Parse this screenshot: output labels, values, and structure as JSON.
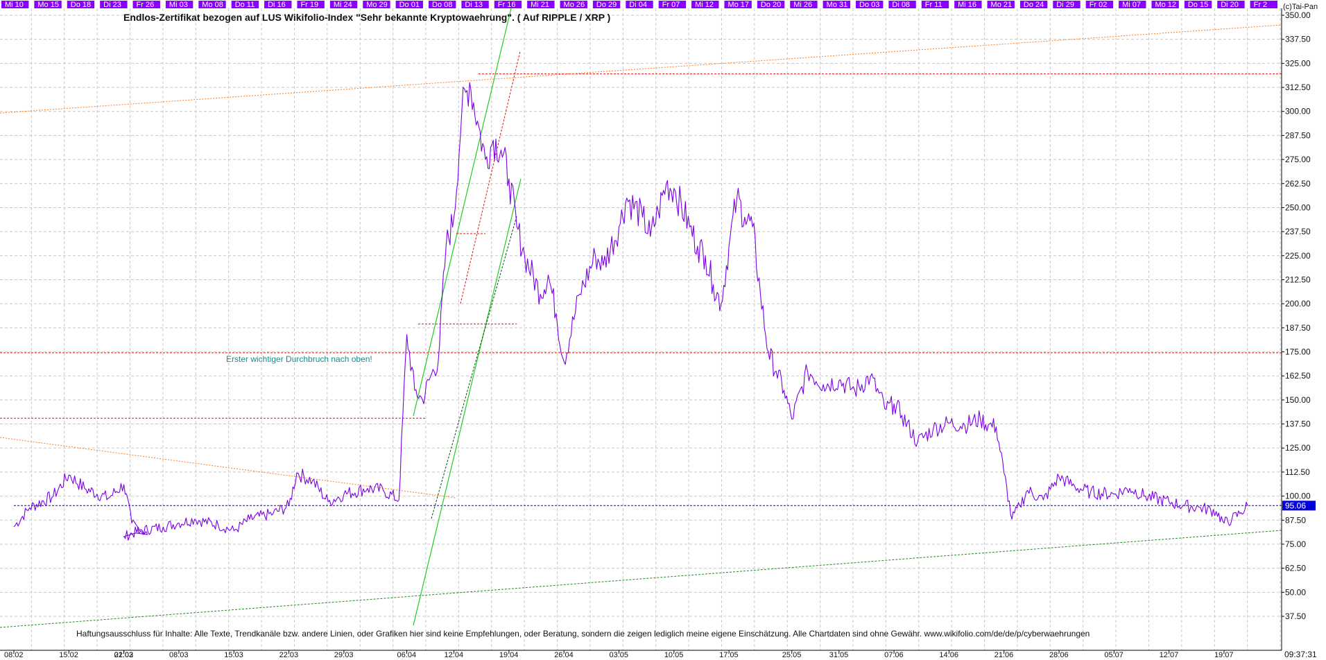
{
  "title": "Endlos-Zertifikat bezogen auf LUS Wikifolio-Index \"Sehr bekannte Kryptowaehrung\". ( Auf RIPPLE / XRP )",
  "footer": "Haftungsausschluss für Inhalte: Alle Texte, Trendkanäle bzw. andere Linien, oder Grafiken hier sind keine Empfehlungen, oder Beratung, sondern die zeigen lediglich meine eigene Einschätzung. Alle Chartdaten sind ohne Gewähr.  www.wikifolio.com/de/de/p/cyberwaehrungen",
  "annotation": "Erster wichtiger Durchbruch nach oben!",
  "copyright": "(c)Tai-Pan",
  "time_label": "09:37:31",
  "last_price_label": "95.06",
  "colors": {
    "price": "#7a00e6",
    "day_band": "#8a00ff",
    "grid": "#c8c8c8",
    "red_line": "#e01010",
    "orange_line": "#ff7a1a",
    "green_line": "#22cc22",
    "green_dotted": "#1f8a1f",
    "blue_line": "#0000dd",
    "last_price_bg": "#0000dd"
  },
  "day_labels": [
    "Mi 10",
    "Mo 15",
    "Do 18",
    "Di 23",
    "Fr 26",
    "Mi 03",
    "Mo 08",
    "Do 11",
    "Di 16",
    "Fr 19",
    "Mi 24",
    "Mo 29",
    "Do 01",
    "Do 08",
    "Di 13",
    "Fr 16",
    "Mi 21",
    "Mo 26",
    "Do 29",
    "Di 04",
    "Fr 07",
    "Mi 12",
    "Mo 17",
    "Do 20",
    "Mi 26",
    "Mo 31",
    "Do 03",
    "Di 08",
    "Fr 11",
    "Mi 16",
    "Mo 21",
    "Do 24",
    "Di 29",
    "Fr 02",
    "Mi 07",
    "Mo 12",
    "Do 15",
    "Di 20",
    "Fr 2"
  ],
  "chart_data": {
    "type": "line",
    "title": "Endlos-Zertifikat bezogen auf LUS Wikifolio-Index \"Sehr bekannte Kryptowaehrung\". ( Auf RIPPLE / XRP )",
    "xlabel": "",
    "ylabel": "",
    "ylim": [
      37.5,
      350
    ],
    "y_ticks": [
      "37.50",
      "50.00",
      "62.50",
      "75.00",
      "87.50",
      "100.00",
      "112.50",
      "125.00",
      "137.50",
      "150.00",
      "162.50",
      "175.00",
      "187.50",
      "200.00",
      "212.50",
      "225.00",
      "237.50",
      "250.00",
      "262.50",
      "275.00",
      "287.50",
      "300.00",
      "312.50",
      "325.00",
      "337.50",
      "350.00"
    ],
    "x_ticks": [
      "08:02",
      "15:02",
      "22:02",
      "01:03",
      "08:03",
      "15:03",
      "22:03",
      "29:03",
      "06:04",
      "12:04",
      "19:04",
      "26:04",
      "03:05",
      "10:05",
      "17:05",
      "25:05",
      "31:05",
      "07:06",
      "14:06",
      "21:06",
      "28:06",
      "05:07",
      "12:07",
      "19:07"
    ],
    "grid": true,
    "series": [
      {
        "x": [
          "08:02",
          "10:02",
          "13:02",
          "15:02",
          "17:02",
          "20:02",
          "22:02",
          "23:02",
          "25:02",
          "01:03",
          "03:03",
          "06:03",
          "08:03",
          "10:03",
          "13:03",
          "15:03",
          "17:03",
          "20:03",
          "22:03",
          "23:03",
          "25:03",
          "27:03",
          "29:03",
          "01:04",
          "03:04",
          "05:04",
          "06:04",
          "07:04",
          "08:04",
          "09:04",
          "10:04",
          "11:04",
          "12:04",
          "13:04",
          "14:04",
          "15:04",
          "16:04",
          "17:04",
          "18:04",
          "19:04",
          "20:04",
          "21:04",
          "23:04",
          "24:04",
          "25:04",
          "26:04",
          "28:04",
          "30:04",
          "01:05",
          "03:05",
          "04:05",
          "06:05",
          "07:05",
          "08:05",
          "09:05",
          "10:05",
          "12:05",
          "13:05",
          "14:05",
          "15:05",
          "16:05",
          "17:05",
          "18:05",
          "19:05",
          "20:05",
          "21:05",
          "22:05",
          "23:05",
          "24:05",
          "25:05",
          "27:05",
          "29:05",
          "31:05",
          "02:06",
          "04:06",
          "06:06",
          "07:06",
          "08:06",
          "10:06",
          "12:06",
          "14:06",
          "16:06",
          "18:06",
          "19:06",
          "20:06",
          "21:06",
          "22:06",
          "23:06",
          "24:06",
          "26:06",
          "28:06",
          "30:06",
          "02:07",
          "05:07",
          "07:07",
          "09:07",
          "12:07",
          "14:07",
          "16:07",
          "18:07",
          "19:07",
          "20:07",
          "21:07",
          "22:07"
        ],
        "values": [
          84,
          94,
          100,
          111,
          104,
          99,
          106,
          86,
          80,
          79,
          82,
          84,
          86,
          88,
          85,
          82,
          88,
          91,
          95,
          112,
          108,
          97,
          101,
          104,
          103,
          98,
          184,
          155,
          150,
          162,
          170,
          230,
          245,
          300,
          315,
          295,
          275,
          285,
          280,
          265,
          240,
          225,
          205,
          215,
          195,
          170,
          205,
          225,
          220,
          240,
          255,
          245,
          235,
          248,
          262,
          260,
          240,
          230,
          225,
          210,
          200,
          230,
          255,
          245,
          240,
          205,
          175,
          165,
          155,
          140,
          165,
          158,
          160,
          155,
          162,
          145,
          148,
          142,
          128,
          135,
          138,
          137,
          140,
          137,
          136,
          112,
          88,
          95,
          103,
          98,
          110,
          105,
          102,
          101,
          104,
          100,
          97,
          95,
          94,
          92,
          86,
          88,
          91,
          95
        ]
      }
    ],
    "lines": [
      {
        "name": "horizontal red",
        "from": [
          "19:03",
          140.5
        ],
        "to": [
          "16:04",
          140.5
        ]
      },
      {
        "name": "horizontal red",
        "from": [
          "06:04",
          174.5
        ],
        "to": [
          "22:07",
          174.5
        ]
      },
      {
        "name": "horizontal red",
        "from": [
          "06:04",
          189.5
        ],
        "to": [
          "20:04",
          189.5
        ]
      },
      {
        "name": "horizontal red",
        "from": [
          "12:04",
          319.5
        ],
        "to": [
          "22:07",
          319.5
        ]
      },
      {
        "name": "horizontal blue",
        "from": [
          "08:02",
          95.06
        ],
        "to": [
          "22:07",
          95.06
        ]
      }
    ]
  }
}
